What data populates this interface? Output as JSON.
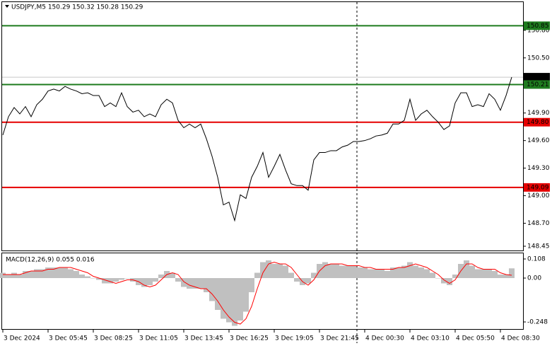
{
  "chart_data": [
    {
      "type": "line",
      "title": "USDJPY,M5  150.29 150.32 150.28 150.29",
      "categories": [
        "3 Dec 2024",
        null,
        null,
        null,
        null,
        null,
        null,
        null,
        "3 Dec 05:45",
        null,
        null,
        null,
        null,
        null,
        null,
        null,
        "3 Dec 08:25",
        null,
        null,
        null,
        null,
        null,
        null,
        null,
        "3 Dec 11:05",
        null,
        null,
        null,
        null,
        null,
        null,
        null,
        "3 Dec 13:45",
        null,
        null,
        null,
        null,
        null,
        null,
        null,
        "3 Dec 16:25",
        null,
        null,
        null,
        null,
        null,
        null,
        null,
        "3 Dec 19:05",
        null,
        null,
        null,
        null,
        null,
        null,
        null,
        "3 Dec 21:45",
        null,
        null,
        null,
        null,
        null,
        null,
        null,
        "4 Dec 00:30",
        null,
        null,
        null,
        null,
        null,
        null,
        null,
        "4 Dec 03:10",
        null,
        null,
        null,
        null,
        null,
        null,
        null,
        "4 Dec 05:50",
        null,
        null,
        null,
        null,
        null,
        null,
        null,
        "4 Dec 08:30",
        null,
        null
      ],
      "values": [
        149.66,
        149.86,
        149.96,
        149.89,
        149.97,
        149.86,
        149.99,
        150.05,
        150.14,
        150.16,
        150.14,
        150.19,
        150.16,
        150.14,
        150.11,
        150.12,
        150.09,
        150.09,
        149.97,
        150.01,
        149.97,
        150.12,
        149.97,
        149.91,
        149.93,
        149.86,
        149.89,
        149.86,
        149.99,
        150.05,
        150.01,
        149.82,
        149.74,
        149.78,
        149.74,
        149.78,
        149.62,
        149.43,
        149.2,
        148.9,
        148.93,
        148.73,
        149.01,
        148.97,
        149.2,
        149.32,
        149.47,
        149.2,
        149.32,
        149.45,
        149.28,
        149.13,
        149.11,
        149.11,
        149.06,
        149.39,
        149.47,
        149.47,
        149.49,
        149.49,
        149.53,
        149.55,
        149.59,
        149.59,
        149.6,
        149.62,
        149.65,
        149.66,
        149.68,
        149.78,
        149.78,
        149.82,
        150.05,
        149.82,
        149.89,
        149.93,
        149.86,
        149.8,
        149.72,
        149.76,
        150.01,
        150.12,
        150.12,
        149.97,
        149.99,
        149.97,
        150.11,
        150.05,
        149.93,
        150.09,
        150.29
      ],
      "color": "#000000",
      "ylim": [
        148.396,
        151.107
      ],
      "yticks": [
        {
          "value": 150.8,
          "label": "150.80"
        },
        {
          "value": 150.5,
          "label": "150.50"
        },
        {
          "value": 149.9,
          "label": "149.90"
        },
        {
          "value": 149.6,
          "label": "149.60"
        },
        {
          "value": 149.3,
          "label": "149.30"
        },
        {
          "value": 149,
          "label": "149.00"
        },
        {
          "value": 148.7,
          "label": "148.70"
        },
        148.45
      ],
      "levels": [
        {
          "value": 150.85,
          "label": "150.85",
          "color": "#1e7b1e"
        },
        {
          "value": 150.21,
          "label": "150.21",
          "color": "#1e7b1e"
        },
        {
          "value": 149.8,
          "label": "149.80",
          "color": "#e60000"
        },
        {
          "value": 149.09,
          "label": "149.09",
          "color": "#e60000"
        }
      ],
      "last_price": {
        "value": 150.29,
        "label": "150.29",
        "color": "#000000"
      }
    },
    {
      "type": "macd",
      "title": "MACD(12,26,9) 0.055 0.016",
      "series": [
        {
          "type": "bar",
          "color": "#c0c0c0",
          "values": [
            0.03,
            0.02,
            0.03,
            0.02,
            0.04,
            0.04,
            0.05,
            0.05,
            0.06,
            0.06,
            0.06,
            0.06,
            0.05,
            0.04,
            0.02,
            0.01,
            0,
            -0.01,
            -0.03,
            -0.03,
            -0.02,
            -0.01,
            0,
            -0.02,
            -0.04,
            -0.05,
            -0.04,
            -0.02,
            0.02,
            0.04,
            0.03,
            -0.02,
            -0.05,
            -0.06,
            -0.06,
            -0.06,
            -0.08,
            -0.13,
            -0.18,
            -0.23,
            -0.25,
            -0.27,
            -0.24,
            -0.19,
            -0.08,
            0.03,
            0.09,
            0.1,
            0.08,
            0.08,
            0.07,
            0.03,
            -0.02,
            -0.04,
            -0.03,
            0.03,
            0.08,
            0.09,
            0.08,
            0.08,
            0.07,
            0.07,
            0.07,
            0.06,
            0.06,
            0.05,
            0.05,
            0.05,
            0.04,
            0.06,
            0.06,
            0.07,
            0.09,
            0.07,
            0.06,
            0.05,
            0.03,
            0,
            -0.03,
            -0.04,
            0.02,
            0.08,
            0.1,
            0.07,
            0.05,
            0.05,
            0.05,
            0.04,
            0.02,
            0.02,
            0.055
          ]
        },
        {
          "type": "line",
          "color": "#ff0000",
          "values": [
            0.02,
            0.02,
            0.02,
            0.02,
            0.03,
            0.04,
            0.04,
            0.04,
            0.05,
            0.05,
            0.06,
            0.06,
            0.06,
            0.05,
            0.04,
            0.03,
            0.01,
            0,
            -0.01,
            -0.02,
            -0.03,
            -0.02,
            -0.01,
            -0.01,
            -0.02,
            -0.04,
            -0.05,
            -0.04,
            -0.01,
            0.02,
            0.03,
            0.02,
            -0.02,
            -0.04,
            -0.05,
            -0.06,
            -0.06,
            -0.09,
            -0.13,
            -0.18,
            -0.22,
            -0.25,
            -0.26,
            -0.23,
            -0.16,
            -0.06,
            0.03,
            0.08,
            0.09,
            0.08,
            0.08,
            0.06,
            0.02,
            -0.02,
            -0.04,
            -0.01,
            0.04,
            0.07,
            0.08,
            0.08,
            0.08,
            0.07,
            0.07,
            0.07,
            0.06,
            0.06,
            0.05,
            0.05,
            0.05,
            0.05,
            0.06,
            0.06,
            0.07,
            0.08,
            0.07,
            0.06,
            0.04,
            0.02,
            -0.01,
            -0.03,
            -0.01,
            0.04,
            0.08,
            0.08,
            0.06,
            0.05,
            0.05,
            0.05,
            0.03,
            0.02,
            0.016
          ]
        }
      ],
      "ylim": [
        -0.292,
        0.14
      ],
      "yticks": [
        0.108,
        {
          "value": 0,
          "label": "0.00"
        },
        -0.248
      ]
    }
  ]
}
